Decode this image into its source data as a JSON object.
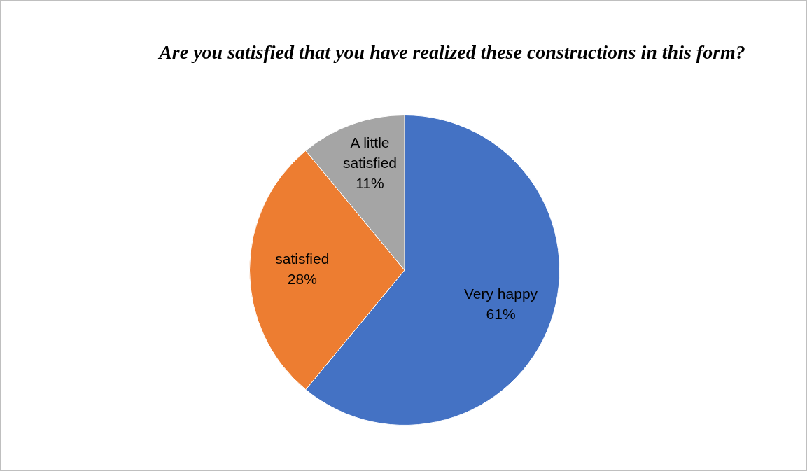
{
  "chart_data": {
    "type": "pie",
    "title": "Are you satisfied that you have realized these constructions in this form?",
    "categories": [
      "Very happy",
      "satisfied",
      "A little satisfied"
    ],
    "values": [
      61,
      28,
      11
    ],
    "colors": [
      "#4472c4",
      "#ed7d31",
      "#a5a5a5"
    ],
    "value_labels": [
      "61%",
      "28%",
      "11%"
    ],
    "legend": false
  }
}
